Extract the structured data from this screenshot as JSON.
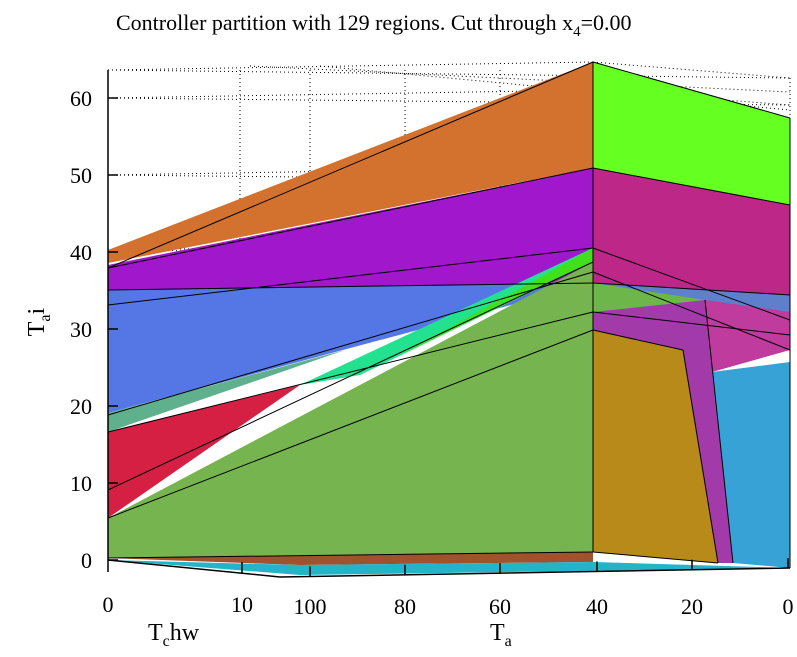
{
  "chart_data": {
    "type": "polyhedral-partition-3d",
    "title": "Controller partition with 129 regions. Cut through x",
    "title_subscript": "4",
    "title_suffix": "=0.00",
    "ylabel_main": "T",
    "ylabel_sub": "a",
    "ylabel_suffix": "i",
    "xlabel_left_main": "T",
    "xlabel_left_sub": "c",
    "xlabel_left_suffix": "hw",
    "xlabel_right_main": "T",
    "xlabel_right_sub": "a",
    "y_ticks": [
      "0",
      "10",
      "20",
      "30",
      "40",
      "50",
      "60"
    ],
    "x_left_ticks": [
      "0",
      "10"
    ],
    "x_right_ticks": [
      "100",
      "80",
      "60",
      "40",
      "20",
      "0"
    ],
    "ylim": [
      0,
      65
    ],
    "grid": "dotted",
    "regions": [
      {
        "color": "#d2722e"
      },
      {
        "color": "#66ff22"
      },
      {
        "color": "#a117cc"
      },
      {
        "color": "#bd2888"
      },
      {
        "color": "#5577e6"
      },
      {
        "color": "#5e80cc"
      },
      {
        "color": "#5fb08c"
      },
      {
        "color": "#d52044"
      },
      {
        "color": "#22e290"
      },
      {
        "color": "#40e01a"
      },
      {
        "color": "#76b450"
      },
      {
        "color": "#b88a1a"
      },
      {
        "color": "#a33aaa"
      },
      {
        "color": "#37a2d6"
      },
      {
        "color": "#c03b9e"
      },
      {
        "color": "#6db74a"
      },
      {
        "color": "#a0522d"
      },
      {
        "color": "#23b4c8"
      }
    ]
  }
}
